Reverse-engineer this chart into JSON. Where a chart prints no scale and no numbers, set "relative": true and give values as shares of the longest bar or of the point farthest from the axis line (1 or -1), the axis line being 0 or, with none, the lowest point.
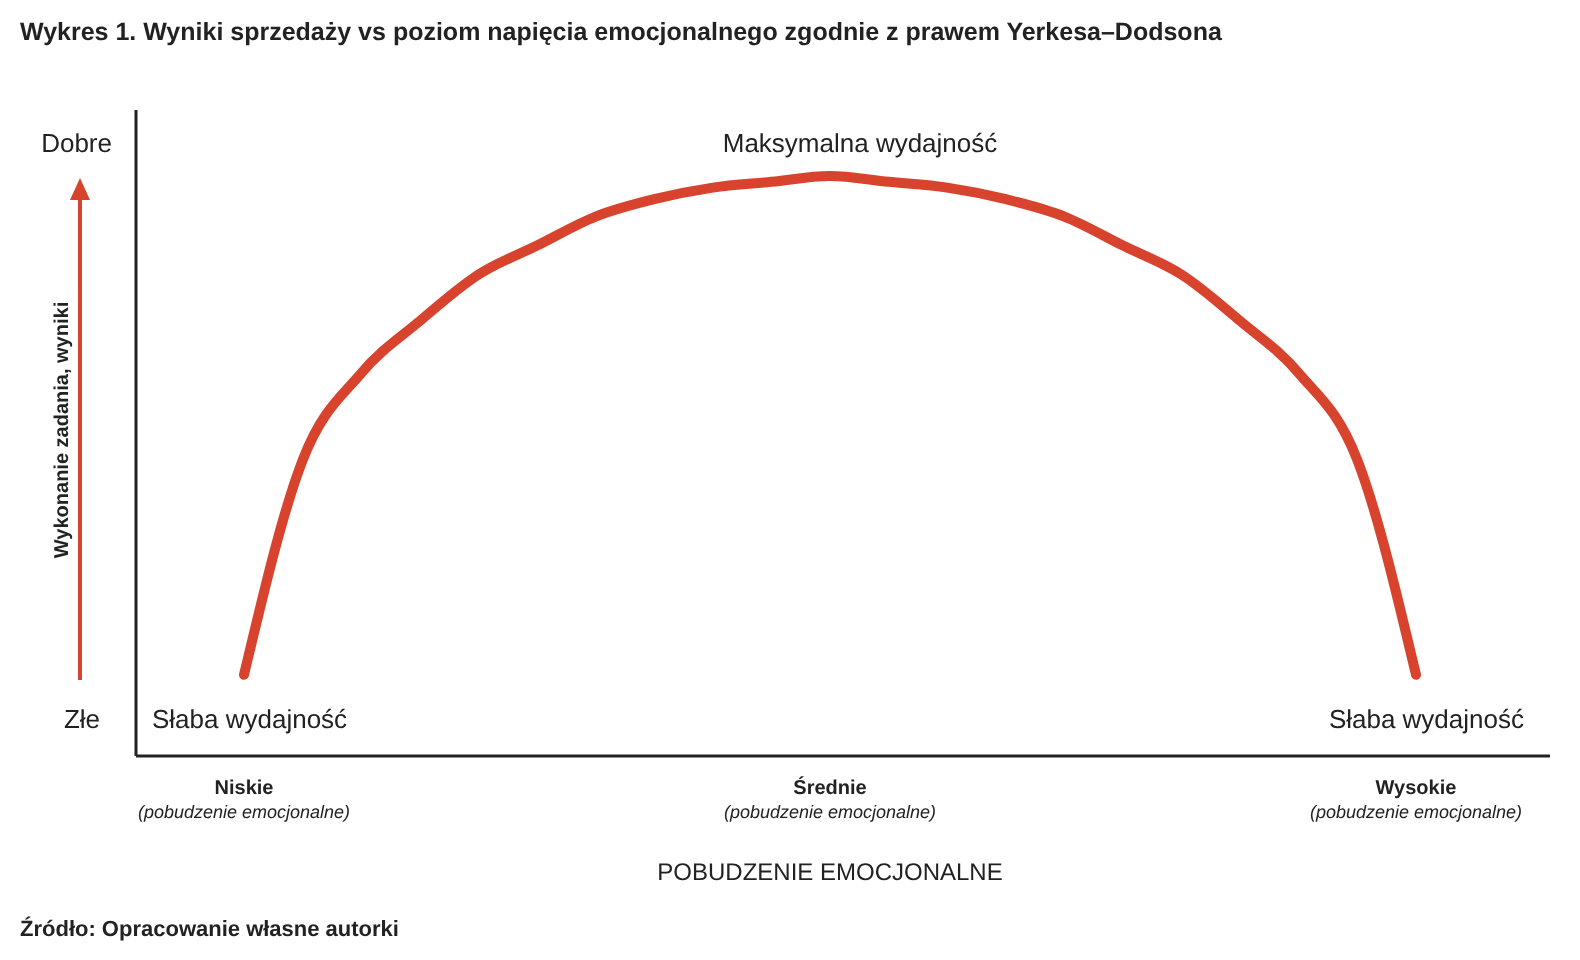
{
  "chart_data": {
    "type": "line",
    "title": "Wykres 1. Wyniki sprzedaży vs poziom napięcia emocjonalnego zgodnie z prawem Yerkesa–Dodsona",
    "xlabel": "POBUDZENIE EMOCJONALNE",
    "ylabel": "Wykonanie zadania, wyniki",
    "relative": true,
    "categories": [
      "Niskie\n(pobudzenie emocjonalne)",
      null,
      null,
      null,
      null,
      null,
      null,
      null,
      null,
      null,
      "Średnie\n(pobudzenie emocjonalne)",
      null,
      null,
      null,
      null,
      null,
      null,
      null,
      null,
      null,
      "Wysokie\n(pobudzenie emocjonalne)"
    ],
    "series": [
      {
        "color": "#d8432e",
        "values": [
          0.14,
          0.51,
          0.66,
          0.75,
          0.83,
          0.88,
          0.93,
          0.96,
          0.98,
          0.99,
          1.0,
          0.99,
          0.98,
          0.96,
          0.93,
          0.88,
          0.83,
          0.75,
          0.66,
          0.51,
          0.14
        ]
      }
    ],
    "annotations": [
      "Maksymalna wydajność",
      "Słaba wydajność",
      "Słaba wydajność",
      "Dobre",
      "Złe",
      "Źródło: Opracowanie własne autorki"
    ]
  }
}
